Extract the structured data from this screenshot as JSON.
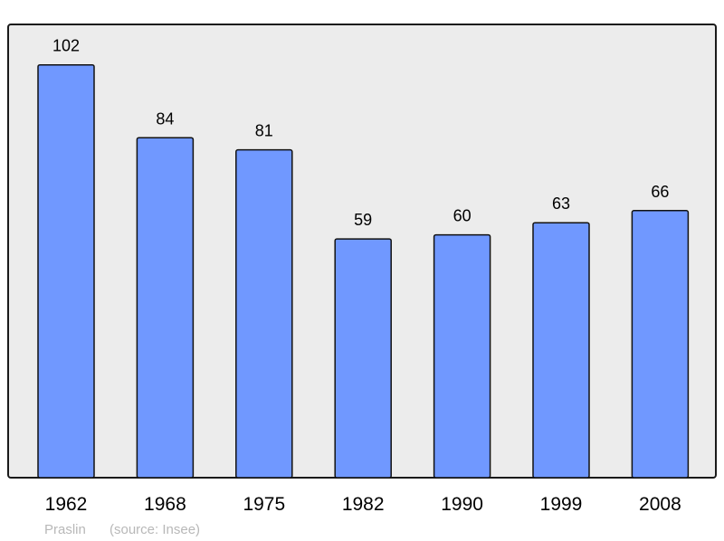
{
  "chart_data": {
    "type": "bar",
    "categories": [
      "1962",
      "1968",
      "1975",
      "1982",
      "1990",
      "1999",
      "2008"
    ],
    "values": [
      102,
      84,
      81,
      59,
      60,
      63,
      66
    ],
    "title": "",
    "xlabel": "",
    "ylabel": "",
    "ylim": [
      0,
      112
    ],
    "grid": false,
    "data_labels": true,
    "bar_color": "#7098ff",
    "plot_background": "#ececec",
    "caption": {
      "place": "Praslin",
      "source": "(source: Insee)"
    }
  }
}
